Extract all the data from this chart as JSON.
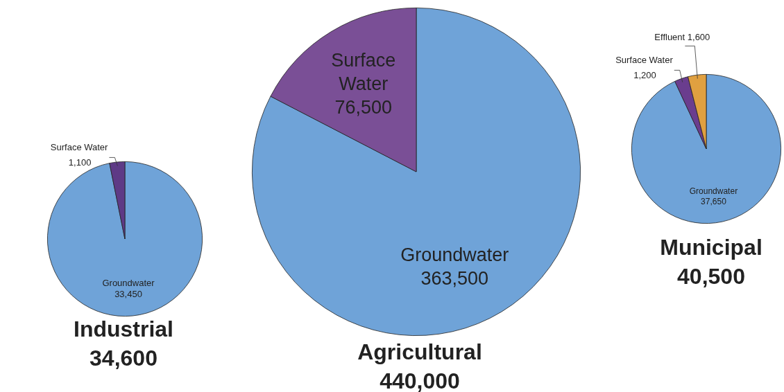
{
  "chart_data": [
    {
      "type": "pie",
      "title": "Industrial",
      "subtitle": "34,600",
      "categories": [
        "Groundwater",
        "Surface Water"
      ],
      "values": [
        33450,
        1100
      ],
      "value_labels": [
        "33,450",
        "1,100"
      ],
      "colors": [
        "#6fa3d8",
        "#5e3a86"
      ]
    },
    {
      "type": "pie",
      "title": "Agricultural",
      "subtitle": "440,000",
      "categories": [
        "Groundwater",
        "Surface Water"
      ],
      "values": [
        363500,
        76500
      ],
      "value_labels": [
        "363,500",
        "76,500"
      ],
      "colors": [
        "#6fa3d8",
        "#7a4f96"
      ]
    },
    {
      "type": "pie",
      "title": "Municipal",
      "subtitle": "40,500",
      "categories": [
        "Groundwater",
        "Surface Water",
        "Effluent"
      ],
      "values": [
        37650,
        1200,
        1600
      ],
      "value_labels": [
        "37,650",
        "1,200",
        "1,600"
      ],
      "colors": [
        "#6fa3d8",
        "#6a3d8e",
        "#e0a040"
      ]
    }
  ]
}
